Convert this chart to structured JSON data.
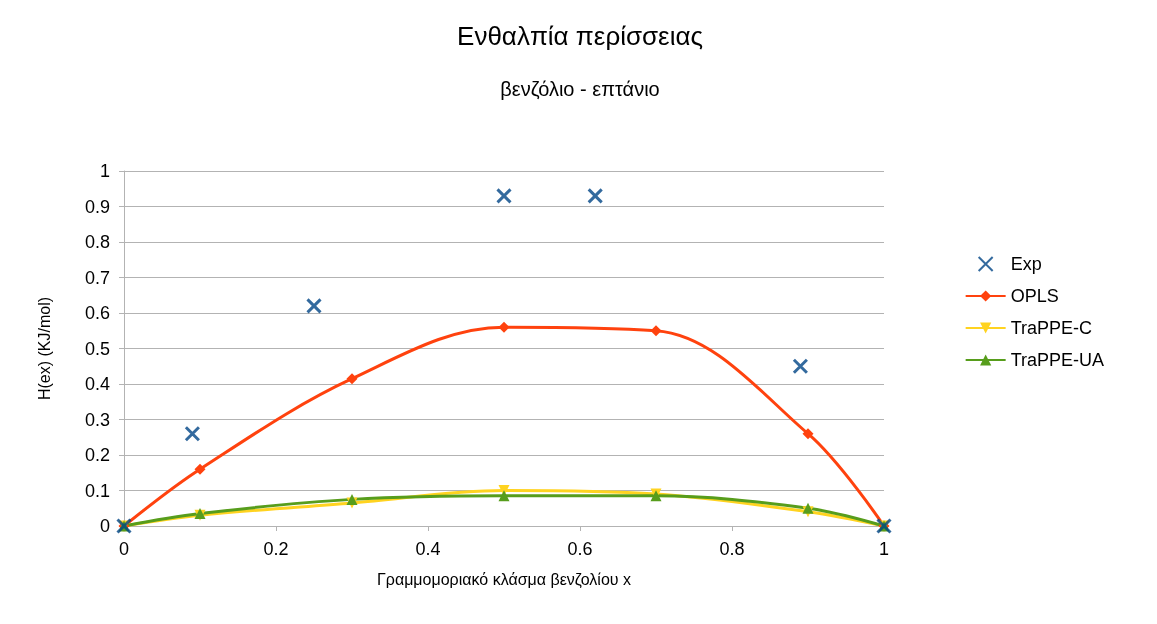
{
  "chart_data": {
    "type": "line",
    "title": "Ενθαλπία περίσσειας",
    "subtitle": "βενζόλιο - επτάνιο",
    "xlabel": "Γραμμομοριακό κλάσμα βενζολίου x",
    "ylabel": "H(ex) (KJ/mol)",
    "xlim": [
      0,
      1
    ],
    "xticks": [
      0,
      0.2,
      0.4,
      0.6,
      0.8,
      1
    ],
    "ylim": [
      0,
      1
    ],
    "yticks": [
      0,
      0.1,
      0.2,
      0.3,
      0.4,
      0.5,
      0.6,
      0.7,
      0.8,
      0.9,
      1
    ],
    "grid": "y",
    "legend": "right",
    "series": [
      {
        "name": "Exp",
        "type": "scatter",
        "marker": "cross",
        "color": "#004586",
        "x": [
          0,
          0.09,
          0.25,
          0.5,
          0.62,
          0.89,
          1
        ],
        "values": [
          0,
          0.26,
          0.62,
          0.93,
          0.93,
          0.45,
          0
        ]
      },
      {
        "name": "OPLS",
        "type": "line",
        "marker": "diamond",
        "color": "#ff420e",
        "x": [
          0,
          0.1,
          0.3,
          0.5,
          0.7,
          0.9,
          1
        ],
        "values": [
          0,
          0.16,
          0.415,
          0.56,
          0.55,
          0.26,
          0
        ]
      },
      {
        "name": "TraPPE-C",
        "type": "line",
        "marker": "triangle-down",
        "color": "#ffd320",
        "x": [
          0,
          0.1,
          0.3,
          0.5,
          0.7,
          0.9,
          1
        ],
        "values": [
          0,
          0.03,
          0.065,
          0.1,
          0.09,
          0.04,
          0
        ]
      },
      {
        "name": "TraPPE-UA",
        "type": "line",
        "marker": "triangle",
        "color": "#579d1c",
        "x": [
          0,
          0.1,
          0.3,
          0.5,
          0.7,
          0.9,
          1
        ],
        "values": [
          0,
          0.035,
          0.075,
          0.085,
          0.085,
          0.05,
          0
        ]
      }
    ]
  }
}
